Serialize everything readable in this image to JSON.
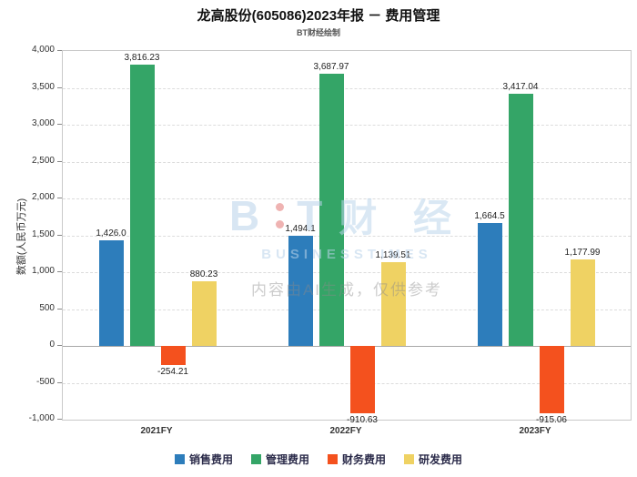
{
  "page": {
    "title": "龙高股份(605086)2023年报 － 费用管理",
    "subtitle": "BT财经绘制"
  },
  "watermark": {
    "logo_b": "B",
    "logo_t": "T",
    "logo_cjk": "财 经",
    "logo_sub": "BUSINESSTIMES",
    "disclaimer": "内容由AI生成，仅供参考"
  },
  "chart_data": {
    "type": "bar",
    "title": "龙高股份(605086)2023年报 － 费用管理",
    "subtitle": "BT财经绘制",
    "xlabel": "",
    "ylabel": "数额(人民币万元)",
    "categories": [
      "2021FY",
      "2022FY",
      "2023FY"
    ],
    "series": [
      {
        "name": "销售费用",
        "color": "#2d7dbb",
        "values": [
          1426.0,
          1494.1,
          1664.5
        ],
        "labels": [
          "1,426.0",
          "1,494.1",
          "1,664.5"
        ]
      },
      {
        "name": "管理费用",
        "color": "#34a567",
        "values": [
          3816.23,
          3687.97,
          3417.04
        ],
        "labels": [
          "3,816.23",
          "3,687.97",
          "3,417.04"
        ]
      },
      {
        "name": "财务费用",
        "color": "#f4511e",
        "values": [
          -254.21,
          -910.63,
          -915.06
        ],
        "labels": [
          "-254.21",
          "-910.63",
          "-915.06"
        ]
      },
      {
        "name": "研发费用",
        "color": "#efd263",
        "values": [
          880.23,
          1139.51,
          1177.99
        ],
        "labels": [
          "880.23",
          "1,139.51",
          "1,177.99"
        ]
      }
    ],
    "ylim": [
      -1000,
      4000
    ],
    "ytick_step": 500,
    "grid": true,
    "legend_position": "bottom"
  }
}
